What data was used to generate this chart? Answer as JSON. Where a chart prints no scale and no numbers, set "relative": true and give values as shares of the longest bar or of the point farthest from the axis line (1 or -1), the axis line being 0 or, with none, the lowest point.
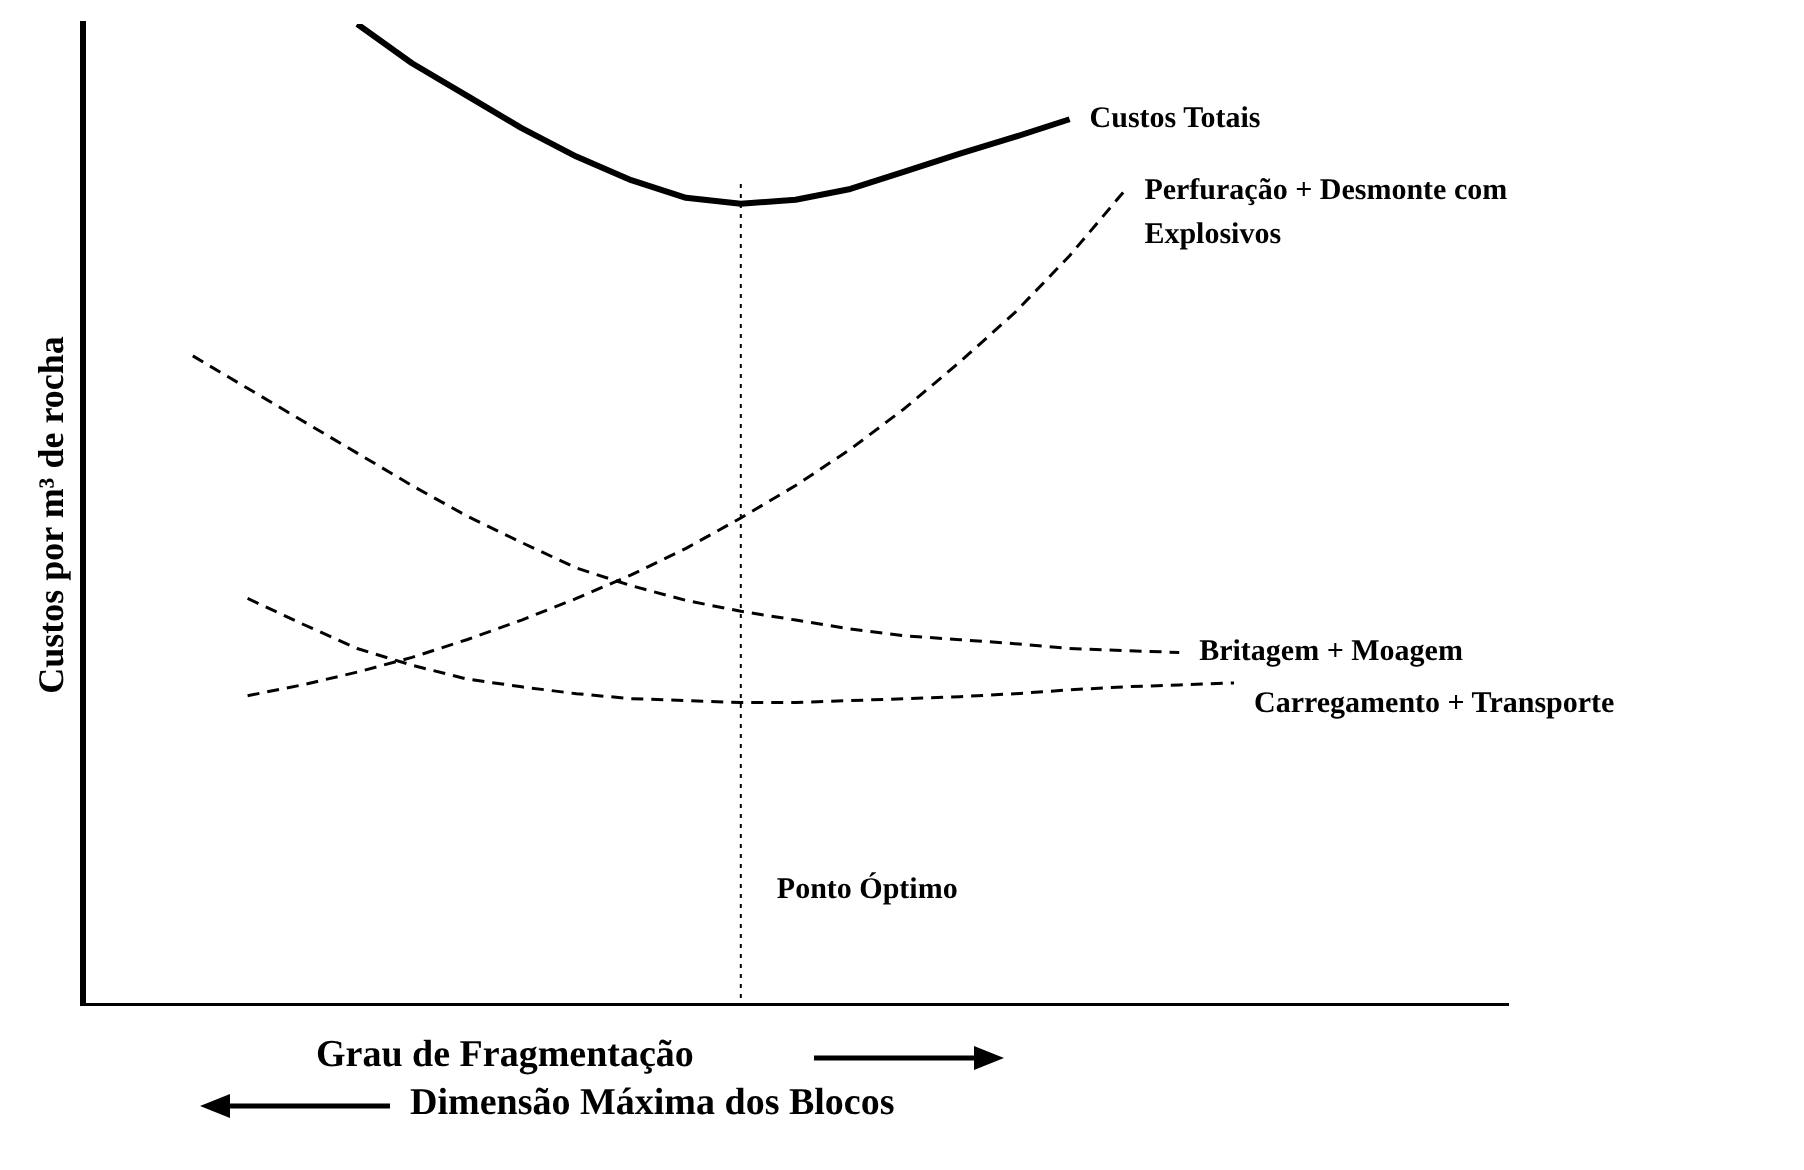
{
  "chart_data": {
    "type": "line",
    "relative": true,
    "tick_labels": false,
    "grid": false,
    "legend": false,
    "marker": "none",
    "ylabel": "Custos por m³ de rocha",
    "xlabel": "Grau de Fragmentação",
    "annotations": [
      "Dimensão Máxima dos Blocos"
    ],
    "categories": [
      null,
      null,
      null,
      null,
      null,
      null,
      null,
      null,
      null,
      null,
      null,
      null,
      null,
      null,
      null,
      null,
      null,
      null,
      null,
      null,
      null,
      null,
      null,
      null,
      null,
      null,
      null
    ],
    "ref_lines": [
      {
        "axis": "x",
        "label": "Ponto Óptimo",
        "line_style": "dotted",
        "color": "#000000"
      }
    ],
    "series": [
      {
        "name": "Custos Totais",
        "color": "#000000",
        "line_style": "solid",
        "values": [
          null,
          null,
          null,
          null,
          null,
          1,
          0.96,
          0.927,
          0.894,
          0.865,
          0.841,
          0.823,
          0.817,
          0.821,
          0.832,
          0.85,
          0.868,
          0.885,
          0.903,
          null,
          null,
          null,
          null,
          null,
          null,
          null,
          null
        ]
      },
      {
        "name": "Perfuração + Desmonte com Explosivos",
        "color": "#000000",
        "line_style": "dashed",
        "values": [
          null,
          null,
          null,
          0.316,
          0.327,
          0.34,
          0.355,
          0.373,
          0.393,
          0.415,
          0.439,
          0.466,
          0.497,
          0.53,
          0.567,
          0.609,
          0.656,
          0.706,
          0.764,
          0.83,
          null,
          null,
          null,
          null,
          null,
          null,
          null
        ]
      },
      {
        "name": "Britagem + Moagem",
        "color": "#000000",
        "line_style": "dashed",
        "values": [
          null,
          null,
          0.662,
          0.629,
          0.596,
          0.563,
          0.53,
          0.499,
          0.472,
          0.446,
          0.428,
          0.413,
          0.402,
          0.393,
          0.384,
          0.377,
          0.373,
          0.369,
          0.364,
          0.362,
          0.36,
          null,
          null,
          null,
          null,
          null,
          null
        ]
      },
      {
        "name": "Carregamento + Transporte",
        "color": "#000000",
        "line_style": "dashed",
        "values": [
          null,
          null,
          null,
          0.415,
          0.389,
          0.364,
          0.347,
          0.333,
          0.325,
          0.318,
          0.313,
          0.311,
          0.309,
          0.309,
          0.311,
          0.313,
          0.315,
          0.318,
          0.322,
          0.325,
          0.327,
          0.329,
          null,
          null,
          null,
          null,
          null
        ]
      }
    ]
  }
}
